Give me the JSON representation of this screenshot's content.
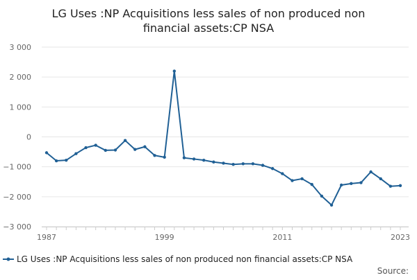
{
  "chart_data": {
    "type": "line",
    "title": "LG Uses :NP Acquisitions less sales of non produced non financial assets:CP NSA",
    "title_lines": [
      "LG Uses :NP Acquisitions less sales of non produced non",
      "financial assets:CP NSA"
    ],
    "x_tick_labels": [
      "1987",
      "1999",
      "2011",
      "2023"
    ],
    "y_tick_labels": [
      "3 000",
      "2 000",
      "1 000",
      "0",
      "−1 000",
      "−2 000",
      "−3 000"
    ],
    "y_ticks": [
      3000,
      2000,
      1000,
      0,
      -1000,
      -2000,
      -3000
    ],
    "ylim": [
      -3000,
      3000
    ],
    "xlim": [
      1987,
      2023
    ],
    "grid": true,
    "legend_position": "bottom",
    "series": [
      {
        "name": "LG Uses :NP Acquisitions less sales of non produced non financial assets:CP NSA",
        "color": "#206095",
        "x": [
          1987,
          1988,
          1989,
          1990,
          1991,
          1992,
          1993,
          1994,
          1995,
          1996,
          1997,
          1998,
          1999,
          2000,
          2001,
          2002,
          2003,
          2004,
          2005,
          2006,
          2007,
          2008,
          2009,
          2010,
          2011,
          2012,
          2013,
          2014,
          2015,
          2016,
          2017,
          2018,
          2019,
          2020,
          2021,
          2022,
          2023
        ],
        "values": [
          -530,
          -800,
          -780,
          -560,
          -360,
          -280,
          -450,
          -440,
          -120,
          -420,
          -330,
          -620,
          -680,
          2200,
          -700,
          -740,
          -780,
          -840,
          -880,
          -920,
          -900,
          -900,
          -950,
          -1060,
          -1230,
          -1460,
          -1400,
          -1590,
          -1980,
          -2280,
          -1610,
          -1560,
          -1530,
          -1170,
          -1400,
          -1650,
          -1630
        ]
      }
    ],
    "source_label": "Source:"
  }
}
